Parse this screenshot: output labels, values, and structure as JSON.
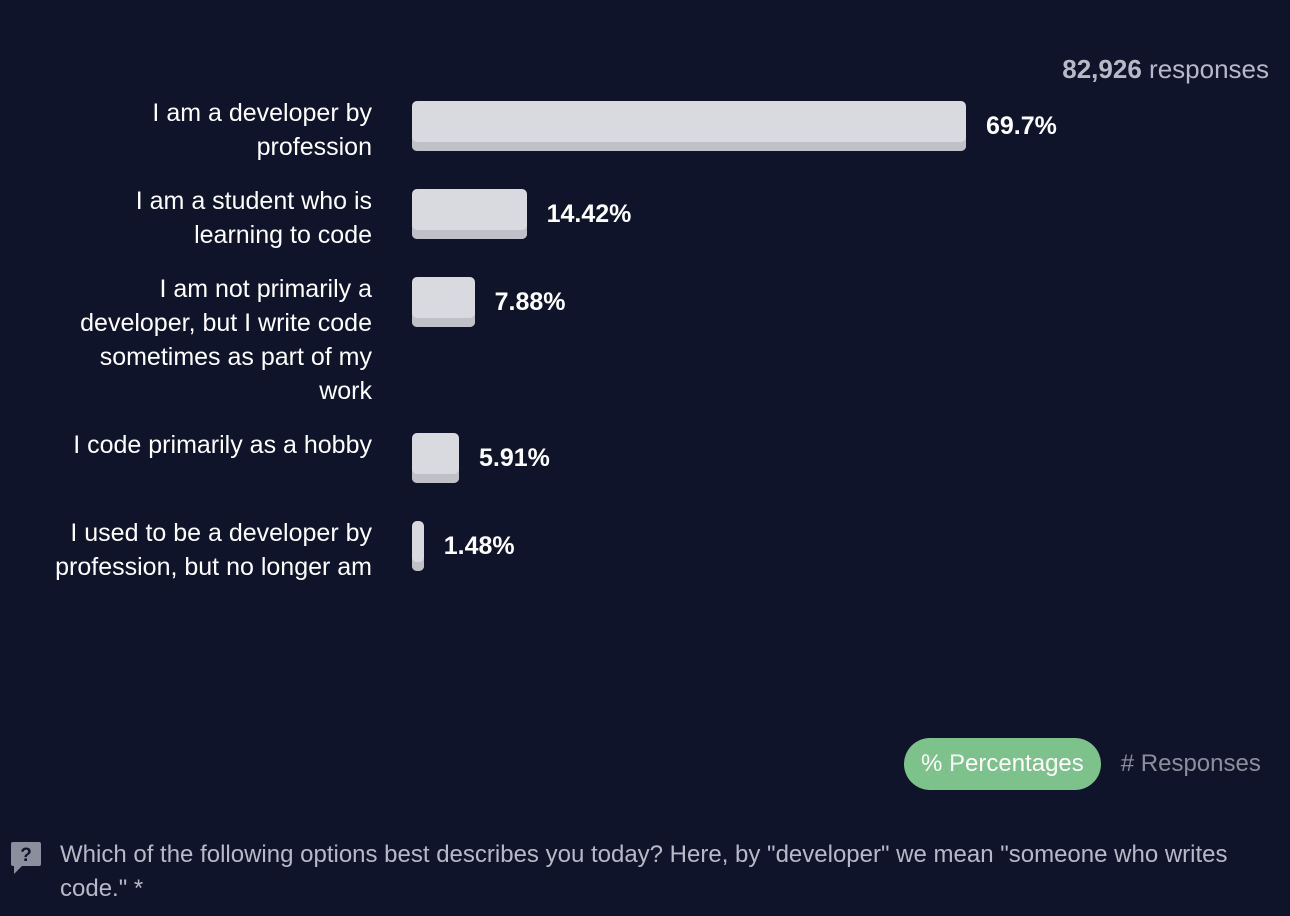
{
  "header": {
    "responses_count": "82,926",
    "responses_label": "responses"
  },
  "chart_data": {
    "type": "bar",
    "orientation": "horizontal",
    "categories": [
      "I am a developer by profession",
      "I am a student who is learning to code",
      "I am not primarily a developer, but I write code sometimes as part of my work",
      "I code primarily as a hobby",
      "I used to be a developer by profession, but no longer am"
    ],
    "values": [
      69.7,
      14.42,
      7.88,
      5.91,
      1.48
    ],
    "value_labels": [
      "69.7%",
      "14.42%",
      "7.88%",
      "5.91%",
      "1.48%"
    ],
    "unit": "%",
    "xlim": [
      0,
      69.7
    ],
    "title": "",
    "xlabel": "",
    "ylabel": "",
    "grid": false,
    "bar_color": "#d9dae0"
  },
  "toggle": {
    "percentages_label": "% Percentages",
    "responses_label": "# Responses",
    "active": "percentages",
    "active_color": "#7cc28a"
  },
  "question": {
    "icon": "question-icon",
    "text": "Which of the following options best describes you today? Here, by \"developer\" we mean \"someone who writes code.\" *"
  },
  "colors": {
    "background": "#10142b",
    "text": "#ffffff",
    "muted_text": "#b7bac6"
  }
}
